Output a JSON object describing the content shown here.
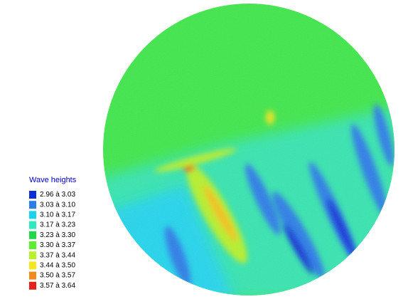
{
  "legend": {
    "title": "Wave heights",
    "items": [
      {
        "label": "2.96 à 3.03",
        "color": "#0a2fd6"
      },
      {
        "label": "3.03 à 3.10",
        "color": "#2b7de9"
      },
      {
        "label": "3.10 à 3.17",
        "color": "#19d1f0"
      },
      {
        "label": "3.17 à 3.23",
        "color": "#2ee8c0"
      },
      {
        "label": "3.23 à 3.30",
        "color": "#22d64a"
      },
      {
        "label": "3.30 à 3.37",
        "color": "#5bef2e"
      },
      {
        "label": "3.37 à 3.44",
        "color": "#b7f22a"
      },
      {
        "label": "3.44 à 3.50",
        "color": "#f5e61e"
      },
      {
        "label": "3.50 à 3.57",
        "color": "#f08a1a"
      },
      {
        "label": "3.57 à 3.64",
        "color": "#e8201a"
      }
    ]
  }
}
